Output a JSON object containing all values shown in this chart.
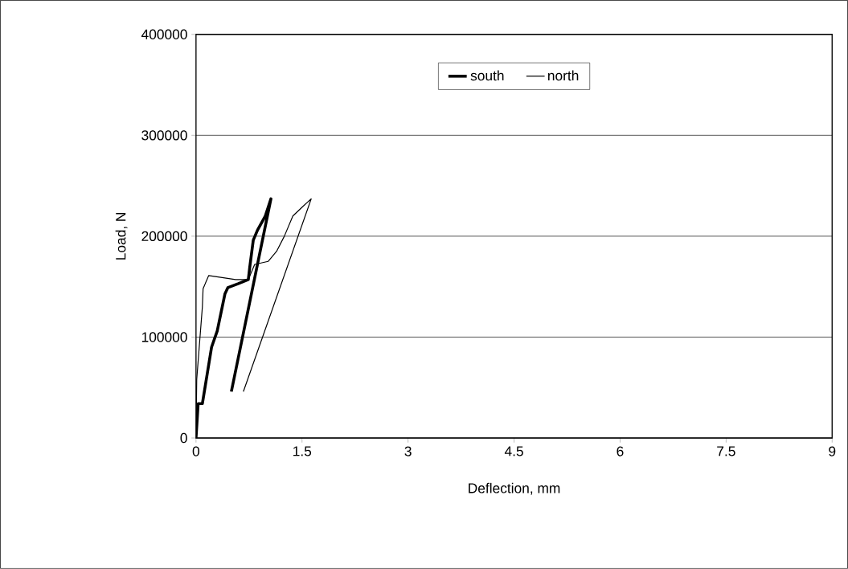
{
  "chart_data": {
    "type": "line",
    "xlabel": "Deflection, mm",
    "ylabel": "Load, N",
    "xlim": [
      0,
      9
    ],
    "xticks": [
      0,
      1.5,
      3,
      4.5,
      6,
      7.5,
      9
    ],
    "ylim": [
      0,
      400000
    ],
    "yticks": [
      0,
      100000,
      200000,
      300000,
      400000
    ],
    "grid": "y",
    "legend": "top",
    "marker": "none",
    "series": [
      {
        "name": "south",
        "color": "#000000",
        "x": [
          0,
          0.03,
          0.09,
          0.22,
          0.3,
          0.41,
          0.45,
          0.6,
          0.74,
          0.76,
          0.81,
          0.87,
          0.98,
          1.06,
          0.5
        ],
        "values": [
          0,
          34000,
          34000,
          90000,
          106000,
          143000,
          149000,
          153000,
          157000,
          169000,
          196000,
          206000,
          220000,
          237000,
          46000
        ]
      },
      {
        "name": "north",
        "color": "#000000",
        "x": [
          0,
          0.01,
          0.09,
          0.1,
          0.18,
          0.56,
          0.74,
          0.83,
          1.02,
          1.14,
          1.25,
          1.37,
          1.52,
          1.63,
          0.67
        ],
        "values": [
          0,
          58000,
          130000,
          148000,
          161000,
          157000,
          157000,
          172000,
          175000,
          185000,
          200000,
          220000,
          230000,
          237000,
          46000
        ]
      }
    ]
  }
}
